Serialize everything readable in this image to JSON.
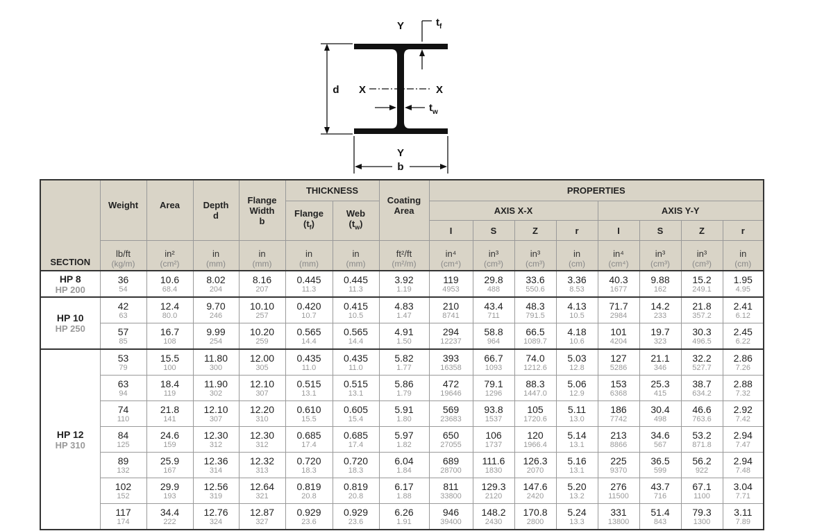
{
  "diagram": {
    "y_top": "Y",
    "y_bottom": "Y",
    "x_left": "X",
    "x_right": "X",
    "d": "d",
    "b": "b",
    "tf": {
      "main": "t",
      "sub": "f"
    },
    "tw": {
      "main": "t",
      "sub": "w"
    }
  },
  "table": {
    "header": {
      "section": "SECTION",
      "thickness": "THICKNESS",
      "properties": "PROPERTIES",
      "axis_xx": "AXIS X-X",
      "axis_yy": "AXIS Y-Y",
      "weight": "Weight",
      "area": "Area",
      "depth": [
        "Depth",
        "d"
      ],
      "flange_width": [
        "Flange",
        "Width",
        "b"
      ],
      "flange": {
        "label": "Flange",
        "pre": "(t",
        "sub": "f",
        "post": ")"
      },
      "web": {
        "label": "Web",
        "pre": "(t",
        "sub": "w",
        "post": ")"
      },
      "coating": [
        "Coating",
        "Area"
      ],
      "props": [
        "I",
        "S",
        "Z",
        "r",
        "I",
        "S",
        "Z",
        "r"
      ],
      "units": [
        [
          "lb/ft",
          "(kg/m)"
        ],
        [
          "in²",
          "(cm²)"
        ],
        [
          "in",
          "(mm)"
        ],
        [
          "in",
          "(mm)"
        ],
        [
          "in",
          "(mm)"
        ],
        [
          "in",
          "(mm)"
        ],
        [
          "ft²/ft",
          "(m²/m)"
        ],
        [
          "in⁴",
          "(cm⁴)"
        ],
        [
          "in³",
          "(cm³)"
        ],
        [
          "in³",
          "(cm³)"
        ],
        [
          "in",
          "(cm)"
        ],
        [
          "in⁴",
          "(cm⁴)"
        ],
        [
          "in³",
          "(cm³)"
        ],
        [
          "in³",
          "(cm³)"
        ],
        [
          "in",
          "(cm)"
        ]
      ]
    },
    "groups": [
      {
        "section": "HP 8",
        "section_metric": "HP 200",
        "rows": [
          [
            [
              "36",
              "54"
            ],
            [
              "10.6",
              "68.4"
            ],
            [
              "8.02",
              "204"
            ],
            [
              "8.16",
              "207"
            ],
            [
              "0.445",
              "11.3"
            ],
            [
              "0.445",
              "11.3"
            ],
            [
              "3.92",
              "1.19"
            ],
            [
              "119",
              "4953"
            ],
            [
              "29.8",
              "488"
            ],
            [
              "33.6",
              "550.6"
            ],
            [
              "3.36",
              "8.53"
            ],
            [
              "40.3",
              "1677"
            ],
            [
              "9.88",
              "162"
            ],
            [
              "15.2",
              "249.1"
            ],
            [
              "1.95",
              "4.95"
            ]
          ]
        ]
      },
      {
        "section": "HP 10",
        "section_metric": "HP 250",
        "rows": [
          [
            [
              "42",
              "63"
            ],
            [
              "12.4",
              "80.0"
            ],
            [
              "9.70",
              "246"
            ],
            [
              "10.10",
              "257"
            ],
            [
              "0.420",
              "10.7"
            ],
            [
              "0.415",
              "10.5"
            ],
            [
              "4.83",
              "1.47"
            ],
            [
              "210",
              "8741"
            ],
            [
              "43.4",
              "711"
            ],
            [
              "48.3",
              "791.5"
            ],
            [
              "4.13",
              "10.5"
            ],
            [
              "71.7",
              "2984"
            ],
            [
              "14.2",
              "233"
            ],
            [
              "21.8",
              "357.2"
            ],
            [
              "2.41",
              "6.12"
            ]
          ],
          [
            [
              "57",
              "85"
            ],
            [
              "16.7",
              "108"
            ],
            [
              "9.99",
              "254"
            ],
            [
              "10.20",
              "259"
            ],
            [
              "0.565",
              "14.4"
            ],
            [
              "0.565",
              "14.4"
            ],
            [
              "4.91",
              "1.50"
            ],
            [
              "294",
              "12237"
            ],
            [
              "58.8",
              "964"
            ],
            [
              "66.5",
              "1089.7"
            ],
            [
              "4.18",
              "10.6"
            ],
            [
              "101",
              "4204"
            ],
            [
              "19.7",
              "323"
            ],
            [
              "30.3",
              "496.5"
            ],
            [
              "2.45",
              "6.22"
            ]
          ]
        ]
      },
      {
        "section": "HP 12",
        "section_metric": "HP 310",
        "rows": [
          [
            [
              "53",
              "79"
            ],
            [
              "15.5",
              "100"
            ],
            [
              "11.80",
              "300"
            ],
            [
              "12.00",
              "305"
            ],
            [
              "0.435",
              "11.0"
            ],
            [
              "0.435",
              "11.0"
            ],
            [
              "5.82",
              "1.77"
            ],
            [
              "393",
              "16358"
            ],
            [
              "66.7",
              "1093"
            ],
            [
              "74.0",
              "1212.6"
            ],
            [
              "5.03",
              "12.8"
            ],
            [
              "127",
              "5286"
            ],
            [
              "21.1",
              "346"
            ],
            [
              "32.2",
              "527.7"
            ],
            [
              "2.86",
              "7.26"
            ]
          ],
          [
            [
              "63",
              "94"
            ],
            [
              "18.4",
              "119"
            ],
            [
              "11.90",
              "302"
            ],
            [
              "12.10",
              "307"
            ],
            [
              "0.515",
              "13.1"
            ],
            [
              "0.515",
              "13.1"
            ],
            [
              "5.86",
              "1.79"
            ],
            [
              "472",
              "19646"
            ],
            [
              "79.1",
              "1296"
            ],
            [
              "88.3",
              "1447.0"
            ],
            [
              "5.06",
              "12.9"
            ],
            [
              "153",
              "6368"
            ],
            [
              "25.3",
              "415"
            ],
            [
              "38.7",
              "634.2"
            ],
            [
              "2.88",
              "7.32"
            ]
          ],
          [
            [
              "74",
              "110"
            ],
            [
              "21.8",
              "141"
            ],
            [
              "12.10",
              "307"
            ],
            [
              "12.20",
              "310"
            ],
            [
              "0.610",
              "15.5"
            ],
            [
              "0.605",
              "15.4"
            ],
            [
              "5.91",
              "1.80"
            ],
            [
              "569",
              "23683"
            ],
            [
              "93.8",
              "1537"
            ],
            [
              "105",
              "1720.6"
            ],
            [
              "5.11",
              "13.0"
            ],
            [
              "186",
              "7742"
            ],
            [
              "30.4",
              "498"
            ],
            [
              "46.6",
              "763.6"
            ],
            [
              "2.92",
              "7.42"
            ]
          ],
          [
            [
              "84",
              "125"
            ],
            [
              "24.6",
              "159"
            ],
            [
              "12.30",
              "312"
            ],
            [
              "12.30",
              "312"
            ],
            [
              "0.685",
              "17.4"
            ],
            [
              "0.685",
              "17.4"
            ],
            [
              "5.97",
              "1.82"
            ],
            [
              "650",
              "27055"
            ],
            [
              "106",
              "1737"
            ],
            [
              "120",
              "1966.4"
            ],
            [
              "5.14",
              "13.1"
            ],
            [
              "213",
              "8866"
            ],
            [
              "34.6",
              "567"
            ],
            [
              "53.2",
              "871.8"
            ],
            [
              "2.94",
              "7.47"
            ]
          ],
          [
            [
              "89",
              "132"
            ],
            [
              "25.9",
              "167"
            ],
            [
              "12.36",
              "314"
            ],
            [
              "12.32",
              "313"
            ],
            [
              "0.720",
              "18.3"
            ],
            [
              "0.720",
              "18.3"
            ],
            [
              "6.04",
              "1.84"
            ],
            [
              "689",
              "28700"
            ],
            [
              "111.6",
              "1830"
            ],
            [
              "126.3",
              "2070"
            ],
            [
              "5.16",
              "13.1"
            ],
            [
              "225",
              "9370"
            ],
            [
              "36.5",
              "599"
            ],
            [
              "56.2",
              "922"
            ],
            [
              "2.94",
              "7.48"
            ]
          ],
          [
            [
              "102",
              "152"
            ],
            [
              "29.9",
              "193"
            ],
            [
              "12.56",
              "319"
            ],
            [
              "12.64",
              "321"
            ],
            [
              "0.819",
              "20.8"
            ],
            [
              "0.819",
              "20.8"
            ],
            [
              "6.17",
              "1.88"
            ],
            [
              "811",
              "33800"
            ],
            [
              "129.3",
              "2120"
            ],
            [
              "147.6",
              "2420"
            ],
            [
              "5.20",
              "13.2"
            ],
            [
              "276",
              "11500"
            ],
            [
              "43.7",
              "716"
            ],
            [
              "67.1",
              "1100"
            ],
            [
              "3.04",
              "7.71"
            ]
          ],
          [
            [
              "117",
              "174"
            ],
            [
              "34.4",
              "222"
            ],
            [
              "12.76",
              "324"
            ],
            [
              "12.87",
              "327"
            ],
            [
              "0.929",
              "23.6"
            ],
            [
              "0.929",
              "23.6"
            ],
            [
              "6.26",
              "1.91"
            ],
            [
              "946",
              "39400"
            ],
            [
              "148.2",
              "2430"
            ],
            [
              "170.8",
              "2800"
            ],
            [
              "5.24",
              "13.3"
            ],
            [
              "331",
              "13800"
            ],
            [
              "51.4",
              "843"
            ],
            [
              "79.3",
              "1300"
            ],
            [
              "3.11",
              "7.89"
            ]
          ]
        ]
      }
    ]
  }
}
